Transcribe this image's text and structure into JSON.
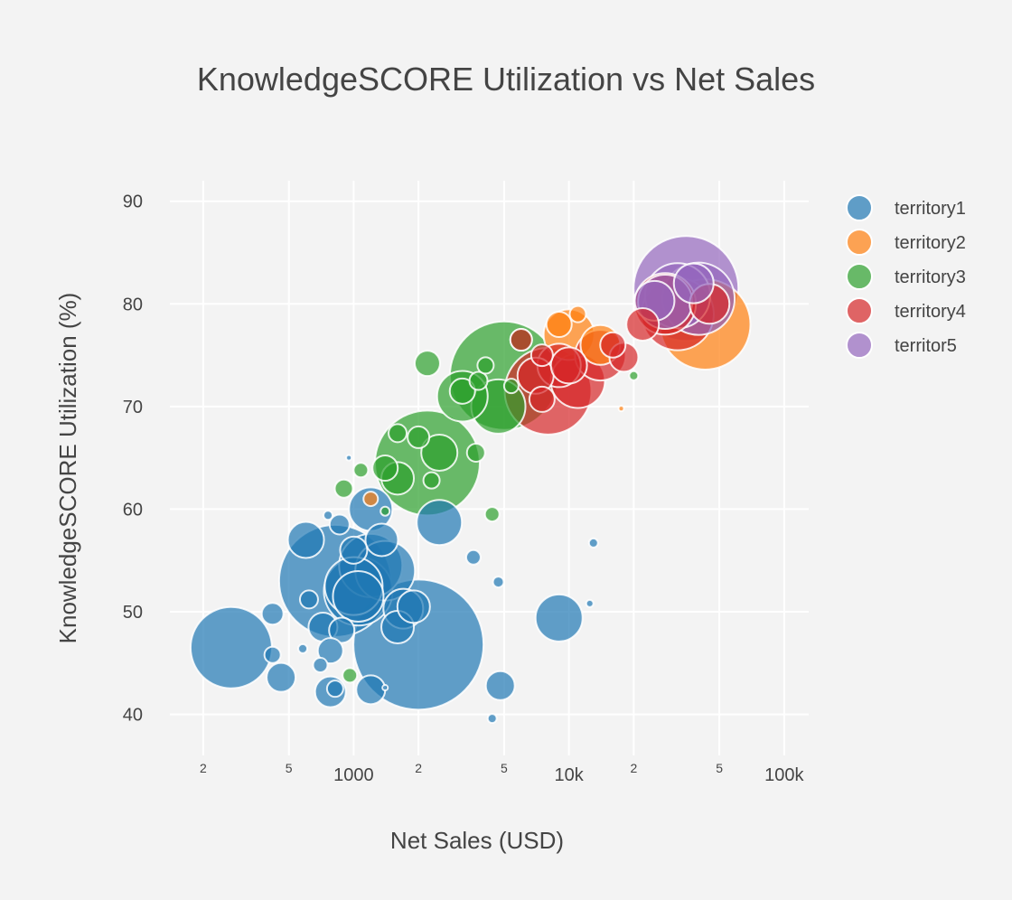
{
  "chart_data": {
    "type": "scatter",
    "title": "KnowledgeSCORE Utilization vs Net Sales",
    "xlabel": "Net Sales (USD)",
    "ylabel": "KnowledgeSCORE Utilization (%)",
    "x_scale": "log",
    "xlim": [
      140,
      130000
    ],
    "ylim": [
      36,
      92
    ],
    "grid": true,
    "legend_position": "top-right",
    "x_ticks": [
      {
        "value": 200,
        "label": "2",
        "minor": true
      },
      {
        "value": 500,
        "label": "5",
        "minor": true
      },
      {
        "value": 1000,
        "label": "1000",
        "minor": false
      },
      {
        "value": 2000,
        "label": "2",
        "minor": true
      },
      {
        "value": 5000,
        "label": "5",
        "minor": true
      },
      {
        "value": 10000,
        "label": "10k",
        "minor": false
      },
      {
        "value": 20000,
        "label": "2",
        "minor": true
      },
      {
        "value": 50000,
        "label": "5",
        "minor": true
      },
      {
        "value": 100000,
        "label": "100k",
        "minor": false
      }
    ],
    "y_ticks": [
      {
        "value": 40,
        "label": "40"
      },
      {
        "value": 50,
        "label": "50"
      },
      {
        "value": 60,
        "label": "60"
      },
      {
        "value": 70,
        "label": "70"
      },
      {
        "value": 80,
        "label": "80"
      },
      {
        "value": 90,
        "label": "90"
      }
    ],
    "series": [
      {
        "name": "territory1",
        "color": "#1f77b4",
        "points": [
          {
            "x": 270,
            "y": 46.5,
            "size": 45
          },
          {
            "x": 2000,
            "y": 46.8,
            "size": 72
          },
          {
            "x": 820,
            "y": 53,
            "size": 62
          },
          {
            "x": 1050,
            "y": 52,
            "size": 38
          },
          {
            "x": 1200,
            "y": 54.5,
            "size": 35
          },
          {
            "x": 1400,
            "y": 54,
            "size": 33
          },
          {
            "x": 1000,
            "y": 52.5,
            "size": 32
          },
          {
            "x": 1050,
            "y": 51.5,
            "size": 28
          },
          {
            "x": 1700,
            "y": 50.3,
            "size": 22
          },
          {
            "x": 2500,
            "y": 58.7,
            "size": 25
          },
          {
            "x": 9000,
            "y": 49.4,
            "size": 26
          },
          {
            "x": 1200,
            "y": 60,
            "size": 24
          },
          {
            "x": 1600,
            "y": 48.5,
            "size": 18
          },
          {
            "x": 1900,
            "y": 50.5,
            "size": 18
          },
          {
            "x": 1350,
            "y": 57,
            "size": 18
          },
          {
            "x": 600,
            "y": 57,
            "size": 20
          },
          {
            "x": 1000,
            "y": 56,
            "size": 15
          },
          {
            "x": 720,
            "y": 48.5,
            "size": 16
          },
          {
            "x": 880,
            "y": 48.2,
            "size": 14
          },
          {
            "x": 780,
            "y": 46.2,
            "size": 14
          },
          {
            "x": 780,
            "y": 42.2,
            "size": 17
          },
          {
            "x": 1200,
            "y": 42.4,
            "size": 16
          },
          {
            "x": 4800,
            "y": 42.8,
            "size": 16
          },
          {
            "x": 460,
            "y": 43.6,
            "size": 16
          },
          {
            "x": 420,
            "y": 49.8,
            "size": 12
          },
          {
            "x": 620,
            "y": 51.2,
            "size": 10
          },
          {
            "x": 820,
            "y": 42.5,
            "size": 9
          },
          {
            "x": 860,
            "y": 58.5,
            "size": 11
          },
          {
            "x": 420,
            "y": 45.8,
            "size": 9
          },
          {
            "x": 700,
            "y": 44.8,
            "size": 8
          },
          {
            "x": 3600,
            "y": 55.3,
            "size": 8
          },
          {
            "x": 4700,
            "y": 52.9,
            "size": 6
          },
          {
            "x": 13000,
            "y": 56.7,
            "size": 5
          },
          {
            "x": 12500,
            "y": 50.8,
            "size": 4
          },
          {
            "x": 4400,
            "y": 39.6,
            "size": 5
          },
          {
            "x": 580,
            "y": 46.4,
            "size": 5
          },
          {
            "x": 760,
            "y": 59.4,
            "size": 5
          },
          {
            "x": 950,
            "y": 65,
            "size": 3
          },
          {
            "x": 1400,
            "y": 42.6,
            "size": 3
          }
        ]
      },
      {
        "name": "territory2",
        "color": "#ff7f0e",
        "points": [
          {
            "x": 43000,
            "y": 78,
            "size": 50
          },
          {
            "x": 10000,
            "y": 77,
            "size": 28
          },
          {
            "x": 14000,
            "y": 76,
            "size": 22
          },
          {
            "x": 9000,
            "y": 78,
            "size": 14
          },
          {
            "x": 11000,
            "y": 79,
            "size": 9
          },
          {
            "x": 1200,
            "y": 61,
            "size": 8
          },
          {
            "x": 17500,
            "y": 69.8,
            "size": 3
          }
        ]
      },
      {
        "name": "territory3",
        "color": "#2ca02c",
        "points": [
          {
            "x": 2200,
            "y": 64.5,
            "size": 58
          },
          {
            "x": 5000,
            "y": 73,
            "size": 60
          },
          {
            "x": 3200,
            "y": 71,
            "size": 28
          },
          {
            "x": 4700,
            "y": 70,
            "size": 30
          },
          {
            "x": 2500,
            "y": 65.5,
            "size": 20
          },
          {
            "x": 3200,
            "y": 71.5,
            "size": 14
          },
          {
            "x": 2200,
            "y": 74.2,
            "size": 14
          },
          {
            "x": 1600,
            "y": 63,
            "size": 18
          },
          {
            "x": 1400,
            "y": 64,
            "size": 14
          },
          {
            "x": 6000,
            "y": 76.5,
            "size": 12
          },
          {
            "x": 3800,
            "y": 72.5,
            "size": 10
          },
          {
            "x": 2000,
            "y": 67,
            "size": 12
          },
          {
            "x": 1600,
            "y": 67.4,
            "size": 10
          },
          {
            "x": 3700,
            "y": 65.5,
            "size": 10
          },
          {
            "x": 900,
            "y": 62,
            "size": 10
          },
          {
            "x": 1080,
            "y": 63.8,
            "size": 8
          },
          {
            "x": 4400,
            "y": 59.5,
            "size": 8
          },
          {
            "x": 4100,
            "y": 74,
            "size": 9
          },
          {
            "x": 2300,
            "y": 62.8,
            "size": 9
          },
          {
            "x": 960,
            "y": 43.8,
            "size": 8
          },
          {
            "x": 5400,
            "y": 72,
            "size": 8
          },
          {
            "x": 20000,
            "y": 73,
            "size": 5
          },
          {
            "x": 1400,
            "y": 59.8,
            "size": 5
          }
        ]
      },
      {
        "name": "territory4",
        "color": "#d62728",
        "points": [
          {
            "x": 8000,
            "y": 71.5,
            "size": 48
          },
          {
            "x": 14000,
            "y": 75,
            "size": 28
          },
          {
            "x": 11000,
            "y": 72.5,
            "size": 30
          },
          {
            "x": 9000,
            "y": 74,
            "size": 24
          },
          {
            "x": 7000,
            "y": 73,
            "size": 20
          },
          {
            "x": 32000,
            "y": 79,
            "size": 40
          },
          {
            "x": 28000,
            "y": 80,
            "size": 34
          },
          {
            "x": 22000,
            "y": 78,
            "size": 18
          },
          {
            "x": 18000,
            "y": 74.8,
            "size": 16
          },
          {
            "x": 16000,
            "y": 76,
            "size": 14
          },
          {
            "x": 10000,
            "y": 74,
            "size": 20
          },
          {
            "x": 7500,
            "y": 75,
            "size": 12
          },
          {
            "x": 7500,
            "y": 70.7,
            "size": 14
          },
          {
            "x": 6000,
            "y": 76.5,
            "size": 12
          },
          {
            "x": 45000,
            "y": 80,
            "size": 22
          }
        ]
      },
      {
        "name": "territor5",
        "color": "#9467bd",
        "points": [
          {
            "x": 35000,
            "y": 81.5,
            "size": 58
          },
          {
            "x": 40000,
            "y": 80.5,
            "size": 40
          },
          {
            "x": 32000,
            "y": 80.8,
            "size": 36
          },
          {
            "x": 28000,
            "y": 80.2,
            "size": 30
          },
          {
            "x": 38000,
            "y": 82,
            "size": 22
          },
          {
            "x": 25000,
            "y": 80.3,
            "size": 22
          }
        ]
      }
    ]
  }
}
